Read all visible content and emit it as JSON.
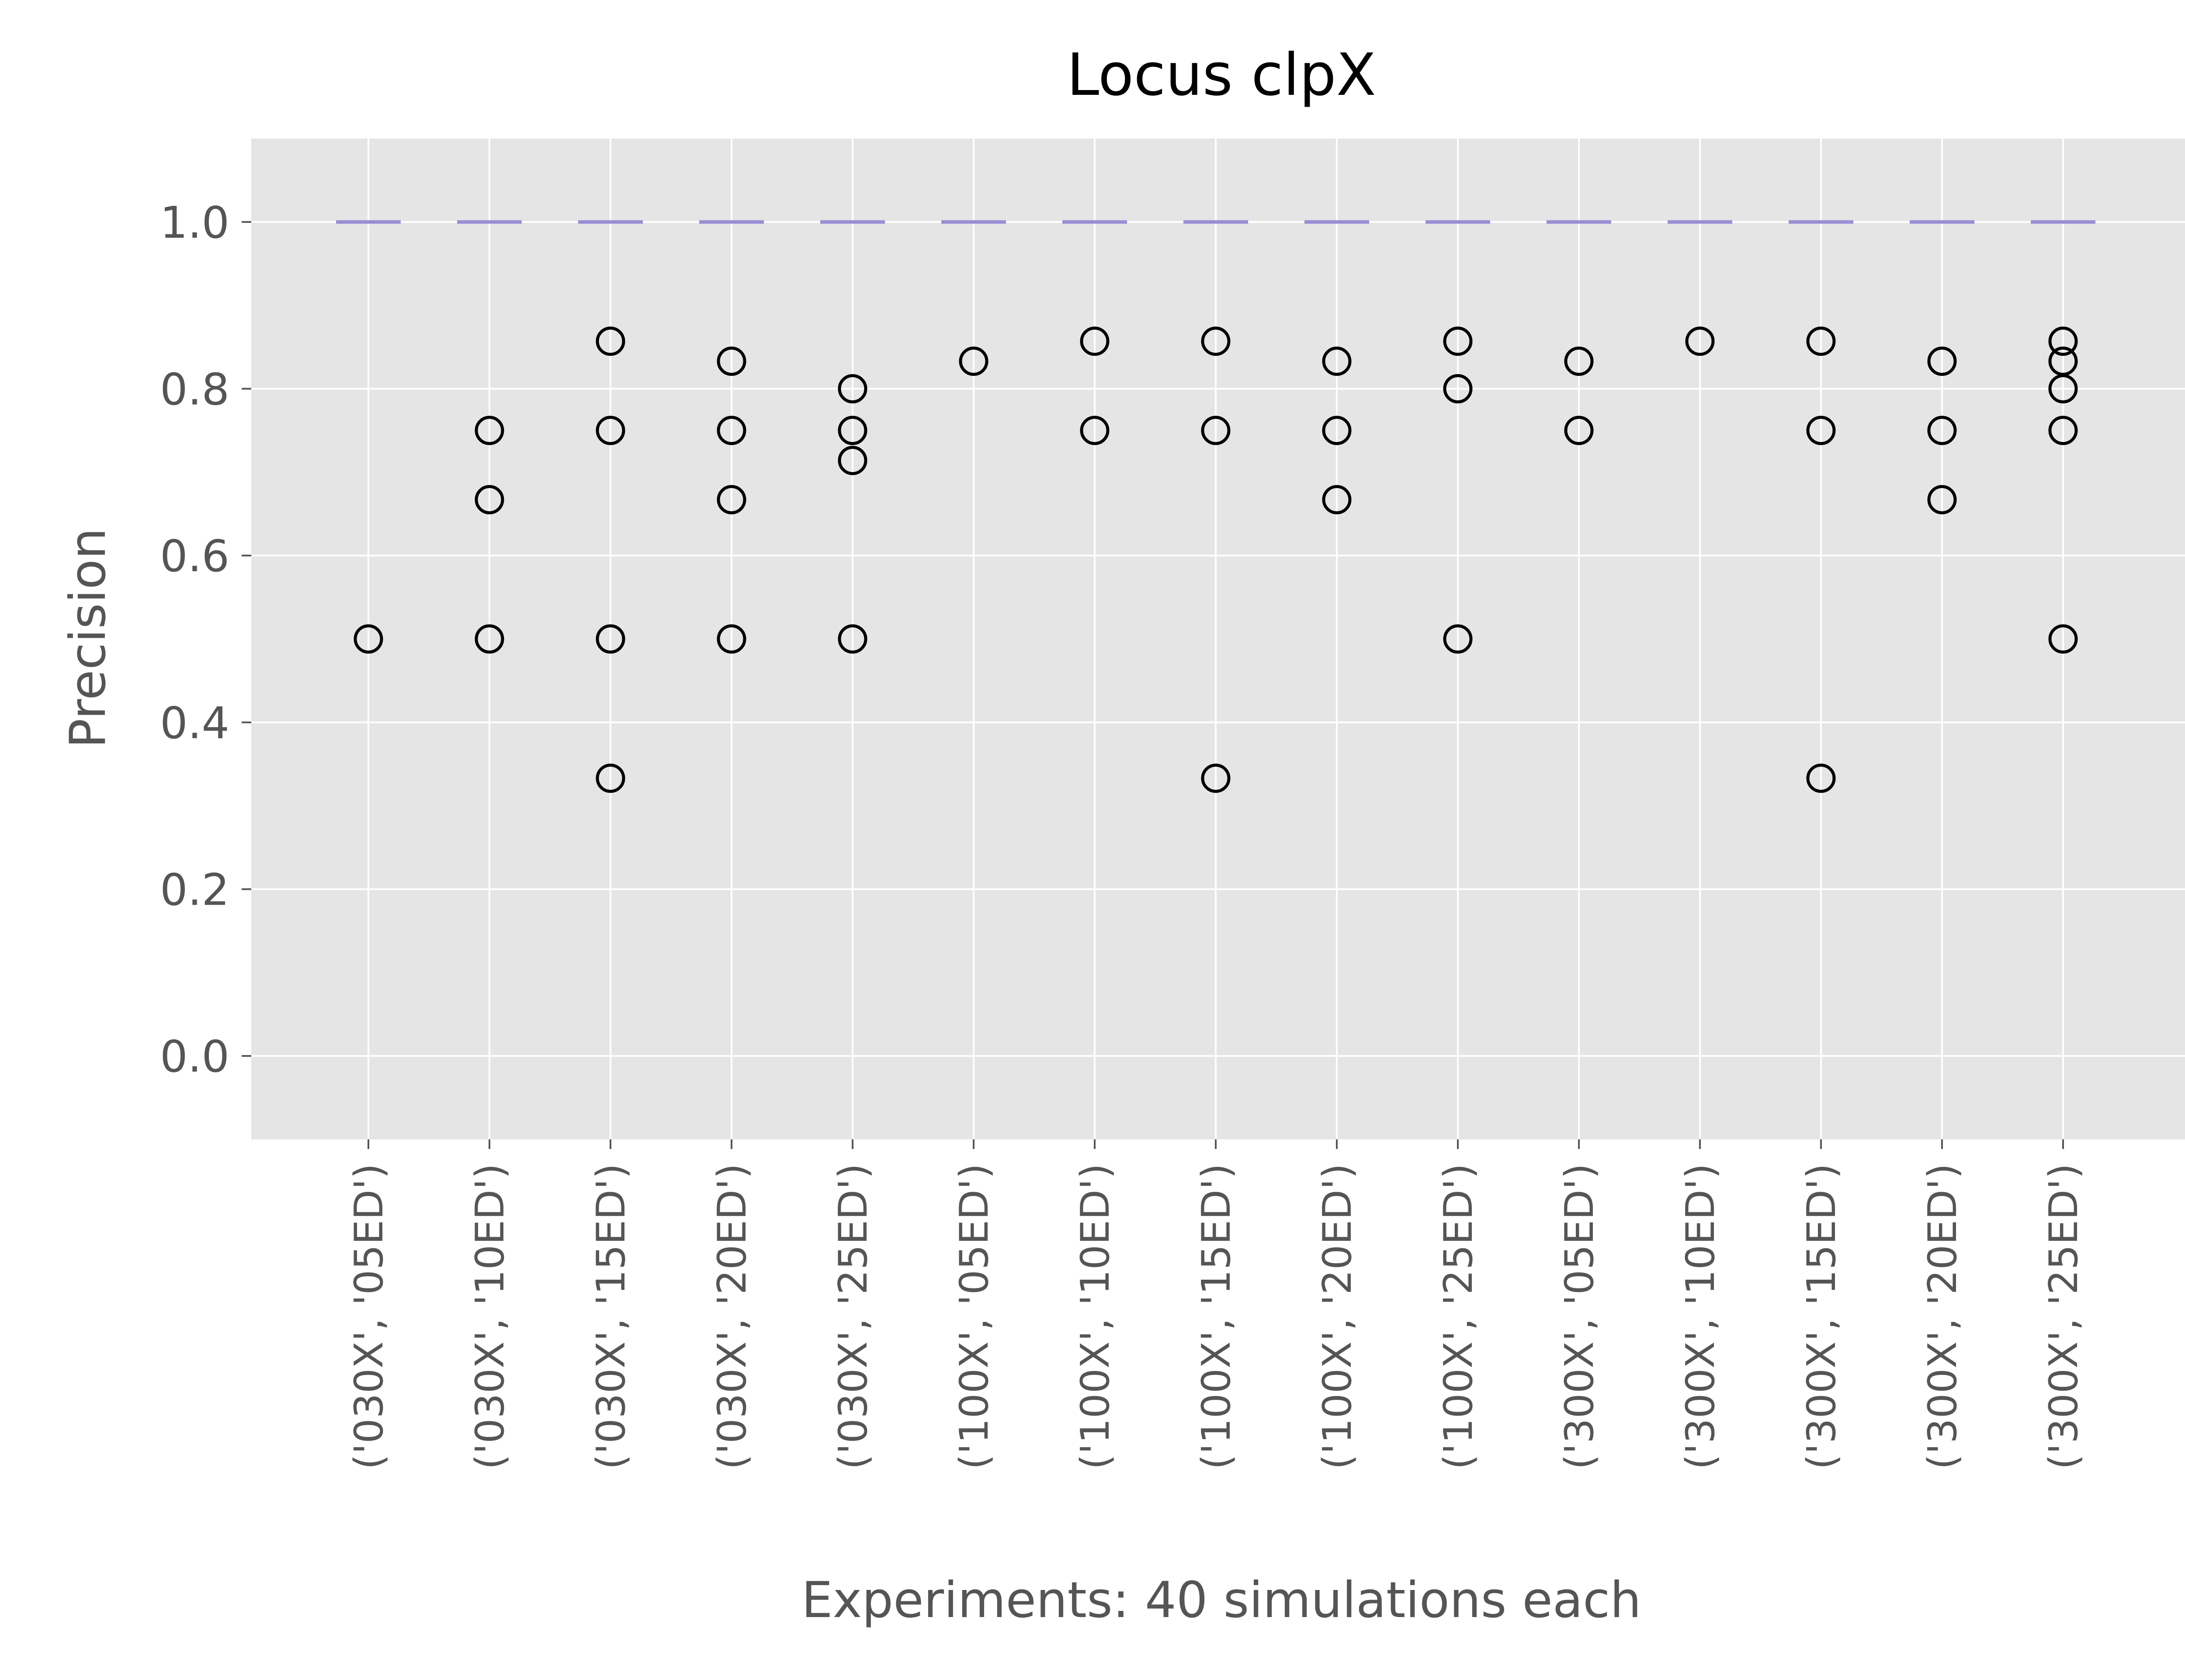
{
  "chart_data": {
    "type": "box",
    "title": "Locus clpX",
    "xlabel": "Experiments: 40 simulations each",
    "ylabel": "Precision",
    "ylim": [
      -0.1,
      1.1
    ],
    "yticks": [
      0.0,
      0.2,
      0.4,
      0.6,
      0.8,
      1.0
    ],
    "ytick_labels": [
      "0.0",
      "0.2",
      "0.4",
      "0.6",
      "0.8",
      "1.0"
    ],
    "grid": true,
    "categories": [
      "('030X', '05ED')",
      "('030X', '10ED')",
      "('030X', '15ED')",
      "('030X', '20ED')",
      "('030X', '25ED')",
      "('100X', '05ED')",
      "('100X', '10ED')",
      "('100X', '15ED')",
      "('100X', '20ED')",
      "('100X', '25ED')",
      "('300X', '05ED')",
      "('300X', '10ED')",
      "('300X', '15ED')",
      "('300X', '20ED')",
      "('300X', '25ED')"
    ],
    "medians": [
      1.0,
      1.0,
      1.0,
      1.0,
      1.0,
      1.0,
      1.0,
      1.0,
      1.0,
      1.0,
      1.0,
      1.0,
      1.0,
      1.0,
      1.0
    ],
    "outliers": [
      [
        0.5
      ],
      [
        0.75,
        0.667,
        0.5
      ],
      [
        0.857,
        0.75,
        0.5,
        0.333
      ],
      [
        0.833,
        0.75,
        0.667,
        0.5
      ],
      [
        0.8,
        0.75,
        0.714,
        0.5
      ],
      [
        0.833
      ],
      [
        0.857,
        0.75
      ],
      [
        0.857,
        0.75,
        0.333
      ],
      [
        0.833,
        0.75,
        0.667
      ],
      [
        0.857,
        0.8,
        0.5
      ],
      [
        0.833,
        0.75
      ],
      [
        0.857
      ],
      [
        0.857,
        0.75,
        0.333
      ],
      [
        0.833,
        0.75,
        0.667
      ],
      [
        0.857,
        0.833,
        0.8,
        0.75,
        0.5
      ]
    ],
    "colors": {
      "background": "#e5e5e5",
      "grid": "#ffffff",
      "median": "#988ed5",
      "outlier_edge": "#000000",
      "tick_text": "#555555",
      "title_text": "#000000"
    }
  }
}
